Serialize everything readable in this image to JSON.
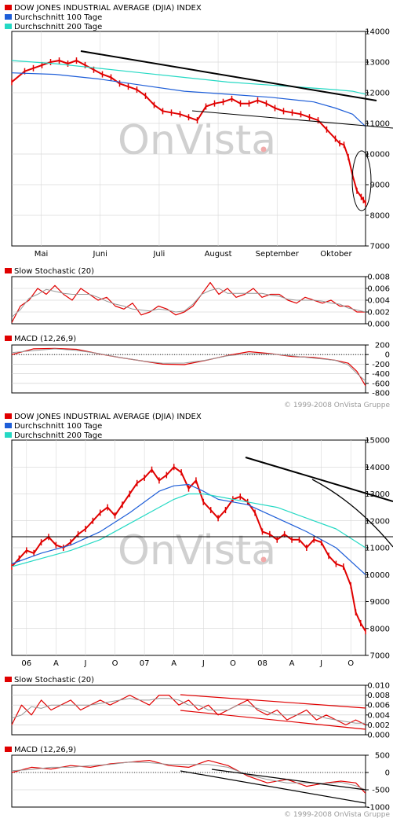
{
  "colors": {
    "index": "#e00000",
    "ma100": "#1e5ed8",
    "ma200": "#25d9c4",
    "trend": "#000000",
    "watermark": "#d0d0d0",
    "watermark_dot": "#f2a9a9",
    "signal": "#999999"
  },
  "watermark": "OnVista",
  "copyright": "© 1999-2008 OnVista Gruppe",
  "chart_data": [
    {
      "type": "line",
      "panel": "short-term price",
      "legend": [
        "DOW JONES INDUSTRIAL AVERAGE (DJIA) INDEX",
        "Durchschnitt 100 Tage",
        "Durchschnitt 200 Tage"
      ],
      "x_ticks": [
        "Mai",
        "Juni",
        "Juli",
        "August",
        "September",
        "Oktober"
      ],
      "y_ticks": [
        "7000",
        "8000",
        "9000",
        "10000",
        "11000",
        "12000",
        "13000",
        "14000"
      ],
      "ylim": [
        7000,
        14000
      ],
      "series": [
        {
          "name": "DOW JONES INDUSTRIAL AVERAGE (DJIA) INDEX",
          "x": [
            0,
            6,
            10,
            14,
            18,
            22,
            26,
            30,
            34,
            38,
            42,
            46,
            50,
            54,
            58,
            62,
            66,
            70,
            74,
            78,
            82,
            86,
            90,
            94,
            98,
            102,
            106,
            110,
            114,
            118,
            122,
            126,
            130,
            134,
            138,
            142,
            146,
            150,
            152,
            154,
            156,
            158,
            160,
            162,
            163,
            164
          ],
          "values": [
            12350,
            12700,
            12800,
            12900,
            13000,
            13050,
            12950,
            13050,
            12900,
            12750,
            12600,
            12500,
            12300,
            12200,
            12100,
            11900,
            11600,
            11400,
            11350,
            11300,
            11200,
            11100,
            11550,
            11650,
            11700,
            11800,
            11650,
            11650,
            11750,
            11650,
            11500,
            11400,
            11350,
            11300,
            11200,
            11100,
            10800,
            10500,
            10350,
            10300,
            9900,
            9300,
            8800,
            8600,
            8500,
            8400
          ]
        },
        {
          "name": "Durchschnitt 100 Tage",
          "x": [
            0,
            20,
            40,
            60,
            80,
            100,
            120,
            140,
            150,
            158,
            164
          ],
          "values": [
            12650,
            12600,
            12450,
            12250,
            12050,
            11950,
            11850,
            11700,
            11500,
            11300,
            10900
          ]
        },
        {
          "name": "Durchschnitt 200 Tage",
          "x": [
            0,
            20,
            40,
            60,
            80,
            100,
            120,
            140,
            150,
            158,
            164
          ],
          "values": [
            13050,
            12950,
            12800,
            12650,
            12500,
            12350,
            12250,
            12150,
            12100,
            12050,
            11950
          ]
        }
      ]
    },
    {
      "type": "line",
      "panel": "short-term stochastic",
      "legend": [
        "Slow Stochastic (20)"
      ],
      "y_ticks": [
        "0.000",
        "0.002",
        "0.004",
        "0.006",
        "0.008"
      ],
      "ylim": [
        0,
        0.008
      ],
      "series": [
        {
          "name": "Slow Stochastic (20)",
          "x": [
            0,
            4,
            8,
            12,
            16,
            20,
            24,
            28,
            32,
            36,
            40,
            44,
            48,
            52,
            56,
            60,
            64,
            68,
            72,
            76,
            80,
            84,
            88,
            92,
            96,
            100,
            104,
            108,
            112,
            116,
            120,
            124,
            128,
            132,
            136,
            140,
            144,
            148,
            152,
            156,
            160,
            164
          ],
          "values": [
            0.0002,
            0.003,
            0.004,
            0.006,
            0.005,
            0.0065,
            0.005,
            0.004,
            0.006,
            0.005,
            0.004,
            0.0045,
            0.003,
            0.0025,
            0.0035,
            0.0015,
            0.002,
            0.003,
            0.0025,
            0.0015,
            0.002,
            0.003,
            0.005,
            0.007,
            0.005,
            0.006,
            0.0045,
            0.005,
            0.006,
            0.0045,
            0.005,
            0.005,
            0.004,
            0.0035,
            0.0045,
            0.004,
            0.0035,
            0.004,
            0.003,
            0.003,
            0.002,
            0.002
          ]
        }
      ]
    },
    {
      "type": "line",
      "panel": "short-term macd",
      "legend": [
        "MACD (12,26,9)"
      ],
      "y_ticks": [
        "-800",
        "-600",
        "-400",
        "-200",
        "0",
        "200"
      ],
      "ylim": [
        -800,
        200
      ],
      "series": [
        {
          "name": "MACD (12,26,9)",
          "x": [
            0,
            10,
            20,
            30,
            40,
            50,
            60,
            70,
            80,
            90,
            100,
            110,
            120,
            130,
            140,
            150,
            156,
            160,
            164
          ],
          "values": [
            0,
            120,
            130,
            110,
            20,
            -60,
            -130,
            -200,
            -210,
            -120,
            -20,
            60,
            20,
            -40,
            -60,
            -120,
            -180,
            -350,
            -650
          ]
        }
      ]
    },
    {
      "type": "line",
      "panel": "long-term price",
      "legend": [
        "DOW JONES INDUSTRIAL AVERAGE (DJIA) INDEX",
        "Durchschnitt 100 Tage",
        "Durchschnitt 200 Tage"
      ],
      "x_ticks": [
        "06",
        "A",
        "J",
        "O",
        "07",
        "A",
        "J",
        "O",
        "08",
        "A",
        "J",
        "O"
      ],
      "y_ticks": [
        "7000",
        "8000",
        "9000",
        "10000",
        "11000",
        "12000",
        "13000",
        "14000",
        "15000"
      ],
      "ylim": [
        7000,
        15000
      ],
      "series": [
        {
          "name": "DOW JONES INDUSTRIAL AVERAGE (DJIA) INDEX",
          "x": [
            0,
            3,
            6,
            9,
            12,
            15,
            18,
            21,
            24,
            27,
            30,
            33,
            36,
            39,
            42,
            45,
            48,
            51,
            54,
            57,
            60,
            63,
            66,
            69,
            72,
            75,
            78,
            81,
            84,
            87,
            90,
            93,
            96,
            99,
            102,
            105,
            108,
            111,
            114,
            117,
            120,
            123,
            126,
            129,
            132,
            135,
            138,
            140,
            142,
            144
          ],
          "values": [
            10300,
            10600,
            10900,
            10800,
            11200,
            11400,
            11100,
            11000,
            11200,
            11500,
            11700,
            12000,
            12300,
            12500,
            12200,
            12600,
            13000,
            13400,
            13600,
            13900,
            13500,
            13700,
            14000,
            13800,
            13200,
            13500,
            12700,
            12400,
            12100,
            12400,
            12800,
            12900,
            12700,
            12300,
            11600,
            11500,
            11300,
            11500,
            11300,
            11300,
            11000,
            11300,
            11200,
            10700,
            10400,
            10300,
            9600,
            8600,
            8200,
            7900
          ]
        },
        {
          "name": "Durchschnitt 100 Tage",
          "x": [
            0,
            12,
            24,
            36,
            48,
            60,
            66,
            72,
            78,
            84,
            96,
            108,
            120,
            132,
            144
          ],
          "values": [
            10400,
            10800,
            11100,
            11600,
            12300,
            13100,
            13300,
            13350,
            13100,
            12800,
            12600,
            12100,
            11600,
            11000,
            10000
          ]
        },
        {
          "name": "Durchschnitt 200 Tage",
          "x": [
            0,
            12,
            24,
            36,
            48,
            60,
            66,
            72,
            78,
            84,
            96,
            108,
            120,
            132,
            144
          ],
          "values": [
            10300,
            10600,
            10900,
            11300,
            11900,
            12500,
            12800,
            13000,
            13000,
            12900,
            12700,
            12500,
            12100,
            11700,
            11000
          ]
        }
      ]
    },
    {
      "type": "line",
      "panel": "long-term stochastic",
      "legend": [
        "Slow Stochastic (20)"
      ],
      "y_ticks": [
        "0.000",
        "0.002",
        "0.004",
        "0.006",
        "0.008",
        "0.010"
      ],
      "ylim": [
        0,
        0.01
      ],
      "series": [
        {
          "name": "Slow Stochastic (20)",
          "x": [
            0,
            4,
            8,
            12,
            16,
            20,
            24,
            28,
            32,
            36,
            40,
            44,
            48,
            52,
            56,
            60,
            64,
            68,
            72,
            76,
            80,
            84,
            88,
            92,
            96,
            100,
            104,
            108,
            112,
            116,
            120,
            124,
            128,
            132,
            136,
            140,
            144
          ],
          "values": [
            0.002,
            0.006,
            0.004,
            0.007,
            0.005,
            0.006,
            0.007,
            0.005,
            0.006,
            0.007,
            0.006,
            0.007,
            0.008,
            0.007,
            0.006,
            0.008,
            0.008,
            0.006,
            0.007,
            0.005,
            0.006,
            0.004,
            0.005,
            0.006,
            0.007,
            0.005,
            0.004,
            0.005,
            0.003,
            0.004,
            0.005,
            0.003,
            0.004,
            0.003,
            0.002,
            0.003,
            0.002
          ]
        }
      ]
    },
    {
      "type": "line",
      "panel": "long-term macd",
      "legend": [
        "MACD (12,26,9)"
      ],
      "y_ticks": [
        "-1000",
        "-500",
        "0",
        "500"
      ],
      "ylim": [
        -1000,
        500
      ],
      "series": [
        {
          "name": "MACD (12,26,9)",
          "x": [
            0,
            8,
            16,
            24,
            32,
            40,
            48,
            56,
            64,
            72,
            80,
            88,
            96,
            104,
            112,
            120,
            128,
            134,
            140,
            144
          ],
          "values": [
            0,
            150,
            100,
            200,
            150,
            250,
            300,
            350,
            200,
            150,
            350,
            200,
            -100,
            -300,
            -200,
            -400,
            -300,
            -250,
            -300,
            -600
          ]
        }
      ]
    }
  ]
}
